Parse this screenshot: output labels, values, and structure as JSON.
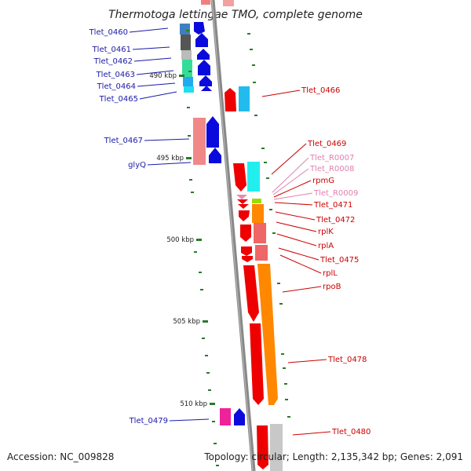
{
  "title": "Thermotoga lettingae TMO, complete genome",
  "footer": {
    "accession": "Accession: NC_009828",
    "summary": "Topology: circular; Length: 2,135,342 bp; Genes: 2,091"
  },
  "colors": {
    "label_left": "#1a1aa8",
    "label_right": "#cc0000",
    "label_rna": "#e080b0",
    "backbone": "#888888",
    "tick": "#2a7a2a"
  },
  "scale": [
    {
      "label": "490 kbp"
    },
    {
      "label": "495 kbp"
    },
    {
      "label": "500 kbp"
    },
    {
      "label": "505 kbp"
    },
    {
      "label": "510 kbp"
    }
  ],
  "left_labels": [
    {
      "name": "Tlet_0460"
    },
    {
      "name": "Tlet_0461"
    },
    {
      "name": "Tlet_0462"
    },
    {
      "name": "Tlet_0463"
    },
    {
      "name": "Tlet_0464"
    },
    {
      "name": "Tlet_0465"
    },
    {
      "name": "Tlet_0467"
    },
    {
      "name": "glyQ"
    },
    {
      "name": "Tlet_0479"
    }
  ],
  "right_labels": [
    {
      "name": "Tlet_0466",
      "kind": "gene"
    },
    {
      "name": "Tlet_0469",
      "kind": "gene"
    },
    {
      "name": "Tlet_R0007",
      "kind": "rna"
    },
    {
      "name": "Tlet_R0008",
      "kind": "rna"
    },
    {
      "name": "rpmG",
      "kind": "gene"
    },
    {
      "name": "Tlet_R0009",
      "kind": "rna"
    },
    {
      "name": "Tlet_0471",
      "kind": "gene"
    },
    {
      "name": "Tlet_0472",
      "kind": "gene"
    },
    {
      "name": "rplK",
      "kind": "gene"
    },
    {
      "name": "rplA",
      "kind": "gene"
    },
    {
      "name": "Tlet_0475",
      "kind": "gene"
    },
    {
      "name": "rplL",
      "kind": "gene"
    },
    {
      "name": "rpoB",
      "kind": "gene"
    },
    {
      "name": "Tlet_0478",
      "kind": "gene"
    },
    {
      "name": "Tlet_0480",
      "kind": "gene"
    }
  ]
}
